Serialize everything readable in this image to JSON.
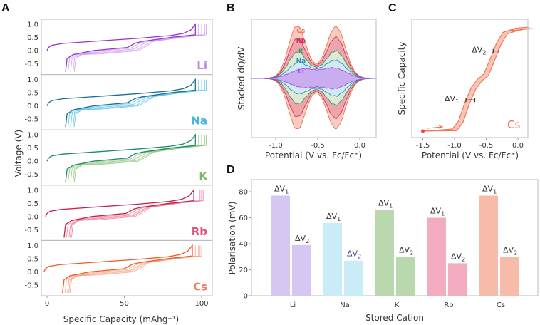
{
  "chart_data": [
    {
      "panel": "A",
      "type": "line",
      "xlabel": "Specific Capacity (mAhg⁻¹)",
      "ylabel": "Voltage (V)",
      "xlim": [
        -5,
        108
      ],
      "ylim": [
        -0.85,
        1.15
      ],
      "xticks": [
        "0",
        "50",
        "100"
      ],
      "yticks": [
        "1.0",
        "0.5",
        "0.0",
        "-0.5"
      ],
      "charge": [
        [
          0,
          0
        ],
        [
          1,
          0.12
        ],
        [
          3,
          0.2
        ],
        [
          10,
          0.27
        ],
        [
          30,
          0.35
        ],
        [
          60,
          0.47
        ],
        [
          80,
          0.57
        ],
        [
          88,
          0.65
        ],
        [
          93,
          0.78
        ],
        [
          96,
          1.0
        ]
      ],
      "discharge": [
        [
          96,
          1.0
        ],
        [
          96,
          0.6
        ],
        [
          80,
          0.5
        ],
        [
          62,
          0.35
        ],
        [
          57,
          0.28
        ],
        [
          52,
          0.12
        ],
        [
          30,
          0.0
        ],
        [
          17,
          -0.15
        ],
        [
          13,
          -0.3
        ],
        [
          12,
          -0.8
        ]
      ],
      "series": [
        {
          "name": "Li",
          "label_color": "#b68ae8",
          "dark": "#9b30c8",
          "light": "#c99be8",
          "cycle_end_capacity": [
            96,
            98,
            100,
            102,
            103
          ]
        },
        {
          "name": "Na",
          "label_color": "#4ab4e0",
          "dark": "#1a6e8e",
          "light": "#5cc2ea",
          "cycle_end_capacity": [
            96,
            98,
            100,
            102,
            103
          ]
        },
        {
          "name": "K",
          "label_color": "#7ab868",
          "dark": "#1e8a6a",
          "light": "#8cc47a",
          "cycle_end_capacity": [
            96,
            98,
            100,
            102,
            103
          ]
        },
        {
          "name": "Rb",
          "label_color": "#e0507a",
          "dark": "#c8204a",
          "light": "#ea7a98",
          "cycle_end_capacity": [
            95,
            97,
            99,
            100,
            101
          ]
        },
        {
          "name": "Cs",
          "label_color": "#f0805a",
          "dark": "#f05a28",
          "light": "#f6a080",
          "cycle_end_capacity": [
            94,
            96,
            98,
            99,
            100
          ]
        }
      ]
    },
    {
      "panel": "B",
      "type": "area",
      "xlabel": "Potential (V  vs. Fc/Fc⁺)",
      "ylabel": "Stacked dQ/dV",
      "xlim": [
        -1.3,
        0.2
      ],
      "xticks": [
        "-1.0",
        "-0.5",
        "0.0"
      ],
      "peak_potentials": [
        -0.75,
        -0.3
      ],
      "series": [
        {
          "name": "Li",
          "color": "#a24fe0",
          "fill": "#c9a6f0",
          "peak_heights": [
            13,
            14
          ]
        },
        {
          "name": "Na",
          "color": "#2b8fbf",
          "fill": "#cdeaf5",
          "peak_heights": [
            10,
            11
          ]
        },
        {
          "name": "K",
          "color": "#2e9a6a",
          "fill": "#dcefd8",
          "peak_heights": [
            15,
            13
          ]
        },
        {
          "name": "Rb",
          "color": "#d0305a",
          "fill": "#eda0a8",
          "peak_heights": [
            19,
            19
          ]
        },
        {
          "name": "Cs",
          "color": "#f07050",
          "fill": "#f8c4b8",
          "peak_heights": [
            18,
            15
          ]
        }
      ]
    },
    {
      "panel": "C",
      "type": "line",
      "xlabel": "Potential (V  vs. Fc/Fc⁺)",
      "ylabel": "Specific Capacity",
      "xlim": [
        -1.68,
        0.25
      ],
      "xticks": [
        "-1.5",
        "-1.0",
        "-0.5",
        "0.0"
      ],
      "label": "Cs",
      "color": "#f07050",
      "points": [
        [
          -1.5,
          0
        ],
        [
          -1.0,
          0.02
        ],
        [
          -0.9,
          0.1
        ],
        [
          -0.8,
          0.28
        ],
        [
          -0.7,
          0.42
        ],
        [
          -0.6,
          0.5
        ],
        [
          -0.5,
          0.55
        ],
        [
          -0.4,
          0.7
        ],
        [
          -0.3,
          0.85
        ],
        [
          -0.2,
          0.95
        ],
        [
          0,
          0.99
        ],
        [
          0.2,
          1.0
        ]
      ],
      "annotations": [
        {
          "text": "ΔV",
          "sub": "1",
          "range": [
            -0.82,
            -0.68
          ],
          "q": 0.3
        },
        {
          "text": "ΔV",
          "sub": "2",
          "range": [
            -0.39,
            -0.3
          ],
          "q": 0.77
        }
      ]
    },
    {
      "panel": "D",
      "type": "bar",
      "xlabel": "Stored Cation",
      "ylabel": "Polarisation (mV)",
      "ylim": [
        0,
        90
      ],
      "yticks": [
        "0",
        "20",
        "40",
        "60",
        "80"
      ],
      "categories": [
        "Li",
        "Na",
        "K",
        "Rb",
        "Cs"
      ],
      "category_colors": [
        "#333333",
        "#4a3aa0",
        "#333333",
        "#333333",
        "#333333"
      ],
      "bar_colors": [
        "#d6c6f2",
        "#c9ecf6",
        "#bad8ae",
        "#f3abbf",
        "#f6bca9"
      ],
      "series": [
        {
          "name": "ΔV1",
          "values": [
            77,
            56,
            66,
            60,
            77
          ]
        },
        {
          "name": "ΔV2",
          "values": [
            39,
            27,
            30,
            25,
            30
          ]
        }
      ]
    }
  ],
  "labels": {
    "A": "A",
    "B": "B",
    "C": "C",
    "D": "D",
    "dv": "ΔV",
    "s1": "1",
    "s2": "2"
  }
}
